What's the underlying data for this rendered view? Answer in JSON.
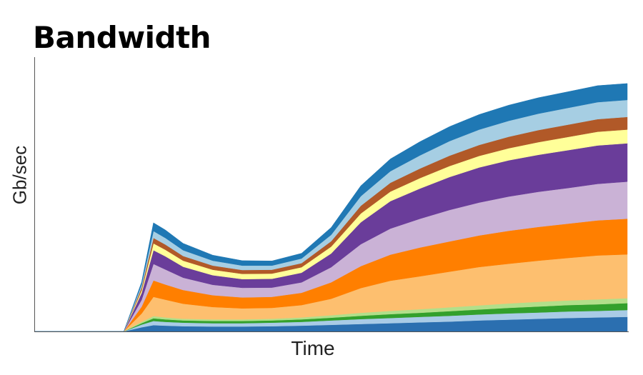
{
  "chart_data": {
    "type": "area",
    "stacked": true,
    "title": "Bandwidth",
    "xlabel": "Time",
    "ylabel": "Gb/sec",
    "ylim": [
      0,
      100
    ],
    "x": [
      0,
      0.05,
      0.1,
      0.15,
      0.18,
      0.2,
      0.22,
      0.25,
      0.3,
      0.35,
      0.4,
      0.45,
      0.5,
      0.55,
      0.6,
      0.65,
      0.7,
      0.75,
      0.8,
      0.85,
      0.9,
      0.95,
      1.0
    ],
    "series": [
      {
        "color": "#2b6fb0",
        "values": [
          0,
          0,
          0,
          0,
          1.5,
          2.3,
          2.1,
          1.9,
          1.8,
          1.8,
          1.9,
          2.1,
          2.4,
          2.7,
          3.0,
          3.3,
          3.6,
          4.0,
          4.3,
          4.6,
          4.9,
          5.1,
          5.3
        ]
      },
      {
        "color": "#a9cbe6",
        "values": [
          0,
          0,
          0,
          0,
          1,
          1.5,
          1.4,
          1.3,
          1.2,
          1.2,
          1.3,
          1.4,
          1.6,
          1.8,
          1.9,
          2.0,
          2.1,
          2.2,
          2.3,
          2.3,
          2.4,
          2.4,
          2.5
        ]
      },
      {
        "color": "#33a02c",
        "values": [
          0,
          0,
          0,
          0,
          0.5,
          1.0,
          0.9,
          0.8,
          0.8,
          0.8,
          0.8,
          0.9,
          1.0,
          1.2,
          1.4,
          1.5,
          1.7,
          1.8,
          2.0,
          2.2,
          2.3,
          2.4,
          2.5
        ]
      },
      {
        "color": "#b2df8a",
        "values": [
          0,
          0,
          0,
          0,
          0.5,
          0.8,
          0.7,
          0.6,
          0.6,
          0.6,
          0.6,
          0.7,
          0.9,
          1.1,
          1.2,
          1.3,
          1.4,
          1.5,
          1.6,
          1.7,
          1.7,
          1.8,
          1.8
        ]
      },
      {
        "color": "#fdbf6f",
        "values": [
          0,
          0,
          0,
          0,
          3,
          7,
          6.5,
          5.5,
          4.5,
          4.0,
          4.0,
          4.5,
          6,
          9,
          11,
          12,
          13,
          14,
          14.5,
          15,
          15.5,
          16,
          16
        ]
      },
      {
        "color": "#ff7f00",
        "values": [
          0,
          0,
          0,
          0,
          2.5,
          6,
          5.5,
          5,
          4.3,
          4.0,
          4.0,
          4.5,
          6,
          8,
          9.5,
          10.5,
          11,
          11.5,
          12,
          12.3,
          12.5,
          12.8,
          13
        ]
      },
      {
        "color": "#cab2d6",
        "values": [
          0,
          0,
          0,
          0,
          2.5,
          6,
          5.5,
          4.5,
          3.8,
          3.5,
          3.4,
          3.8,
          5.5,
          8,
          9.5,
          10.5,
          11.5,
          12,
          12.5,
          12.8,
          13,
          13.3,
          13.5
        ]
      },
      {
        "color": "#6a3d9a",
        "values": [
          0,
          0,
          0,
          0,
          2.5,
          5,
          4.8,
          4.0,
          3.5,
          3.2,
          3.2,
          3.5,
          5,
          8,
          10,
          11,
          12,
          12.8,
          13.2,
          13.5,
          13.8,
          14,
          14
        ]
      },
      {
        "color": "#ffff99",
        "values": [
          0,
          0,
          0,
          0,
          1,
          2.5,
          2.4,
          2.2,
          2.0,
          1.9,
          1.9,
          2.0,
          2.5,
          3.2,
          3.5,
          3.8,
          4.0,
          4.2,
          4.4,
          4.6,
          4.8,
          5.0,
          5.0
        ]
      },
      {
        "color": "#b15928",
        "values": [
          0,
          0,
          0,
          0,
          1,
          2.0,
          1.9,
          1.7,
          1.5,
          1.4,
          1.4,
          1.5,
          2.0,
          2.8,
          3.2,
          3.5,
          3.8,
          4.0,
          4.2,
          4.4,
          4.5,
          4.6,
          4.6
        ]
      },
      {
        "color": "#a6cee3",
        "values": [
          0,
          0,
          0,
          0,
          1,
          2.5,
          2.4,
          2.1,
          1.8,
          1.6,
          1.5,
          1.7,
          2.3,
          3.5,
          4.2,
          4.8,
          5.3,
          5.6,
          5.8,
          6.0,
          6.1,
          6.2,
          6.2
        ]
      },
      {
        "color": "#1f78b4",
        "values": [
          0,
          0,
          0,
          0,
          1,
          3.0,
          2.9,
          2.5,
          2.0,
          1.8,
          1.7,
          1.9,
          2.7,
          3.8,
          4.5,
          5.0,
          5.3,
          5.5,
          5.7,
          5.8,
          5.9,
          6.0,
          6.0
        ]
      }
    ]
  }
}
